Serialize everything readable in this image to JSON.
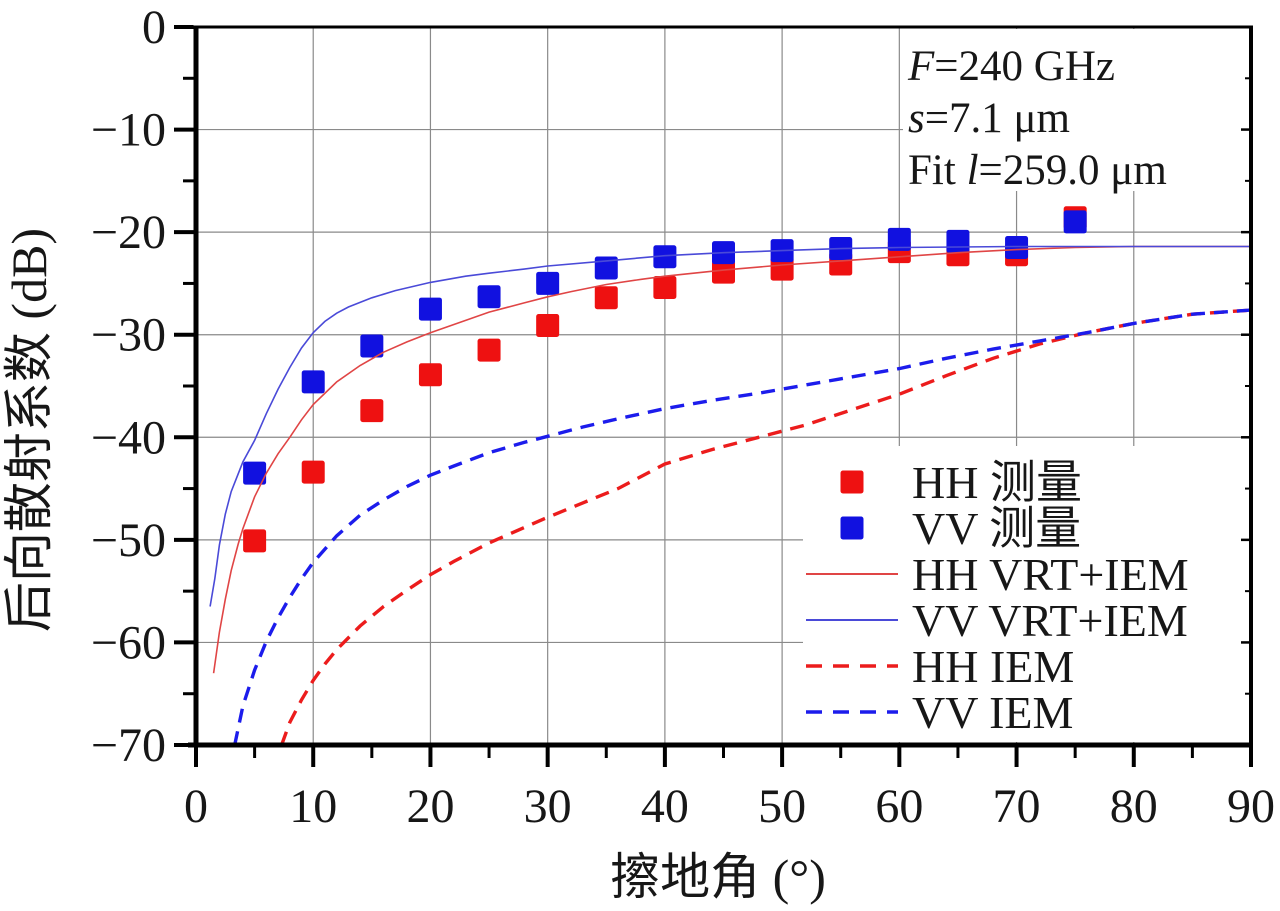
{
  "figure": {
    "background": "#ffffff",
    "text_color": "#171717",
    "grid_color": "#8a8a8a",
    "axis_color": "#000000",
    "annotation": {
      "lines": [
        {
          "pre": "",
          "italic": "F",
          "post": "=240 GHz"
        },
        {
          "pre": "",
          "italic": "s",
          "post": "=7.1 μm"
        },
        {
          "pre": "Fit ",
          "italic": "l",
          "post": "=259.0 μm"
        }
      ]
    },
    "axes": {
      "x": {
        "label": "擦地角 (°)",
        "min": 0,
        "max": 90,
        "major_step": 10,
        "minor_step": 5,
        "tick_labels": [
          "0",
          "10",
          "20",
          "30",
          "40",
          "50",
          "60",
          "70",
          "80",
          "90"
        ]
      },
      "y": {
        "label": "后向散射系数 (dB)",
        "min": -70,
        "max": 0,
        "major_step": 10,
        "minor_step": 5,
        "tick_labels": [
          "0",
          "−10",
          "−20",
          "−30",
          "−40",
          "−50",
          "−60",
          "−70"
        ]
      }
    },
    "legend": {
      "entries": [
        {
          "label": "HH 测量",
          "swatch": "square",
          "color": "#ee1111"
        },
        {
          "label": "VV 测量",
          "swatch": "square",
          "color": "#1111e0"
        },
        {
          "label": "HH VRT+IEM",
          "swatch": "line",
          "color": "#e04545"
        },
        {
          "label": "VV VRT+IEM",
          "swatch": "line",
          "color": "#4a4ad8"
        },
        {
          "label": "HH IEM",
          "swatch": "dashed",
          "color": "#ec1c1c"
        },
        {
          "label": "VV IEM",
          "swatch": "dashed",
          "color": "#1c1cec"
        }
      ]
    }
  },
  "chart_data": {
    "type": "scatter",
    "title": "",
    "xlabel": "擦地角 (°)",
    "ylabel": "后向散射系数 (dB)",
    "xlim": [
      0,
      90
    ],
    "ylim": [
      -70,
      0
    ],
    "grid": true,
    "legend_position": "inside lower right",
    "annotation": [
      "F=240 GHz",
      "s=7.1 μm",
      "Fit l=259.0 μm"
    ],
    "series": [
      {
        "name": "HH 测量",
        "kind": "scatter",
        "marker": "square",
        "color": "#ee1111",
        "points": [
          [
            5,
            -50.1
          ],
          [
            10,
            -43.4
          ],
          [
            15,
            -37.4
          ],
          [
            20,
            -33.9
          ],
          [
            25,
            -31.5
          ],
          [
            30,
            -29.1
          ],
          [
            35,
            -26.4
          ],
          [
            40,
            -25.4
          ],
          [
            45,
            -23.9
          ],
          [
            50,
            -23.6
          ],
          [
            55,
            -23.1
          ],
          [
            60,
            -21.9
          ],
          [
            65,
            -22.2
          ],
          [
            70,
            -22.2
          ],
          [
            75,
            -18.6
          ]
        ]
      },
      {
        "name": "VV 测量",
        "kind": "scatter",
        "marker": "square",
        "color": "#1111e0",
        "points": [
          [
            5,
            -43.5
          ],
          [
            10,
            -34.6
          ],
          [
            15,
            -31.1
          ],
          [
            20,
            -27.5
          ],
          [
            25,
            -26.3
          ],
          [
            30,
            -25.0
          ],
          [
            35,
            -23.5
          ],
          [
            40,
            -22.4
          ],
          [
            45,
            -22.0
          ],
          [
            50,
            -21.8
          ],
          [
            55,
            -21.6
          ],
          [
            60,
            -20.7
          ],
          [
            65,
            -20.9
          ],
          [
            70,
            -21.5
          ],
          [
            75,
            -19.0
          ]
        ]
      },
      {
        "name": "HH VRT+IEM",
        "kind": "line",
        "style": "solid",
        "width": 1.6,
        "color": "#e04545",
        "points": [
          [
            1.5,
            -63
          ],
          [
            2,
            -59
          ],
          [
            2.5,
            -55.8
          ],
          [
            3,
            -53
          ],
          [
            3.6,
            -50.4
          ],
          [
            4,
            -48.9
          ],
          [
            5,
            -45.8
          ],
          [
            6,
            -43.5
          ],
          [
            7,
            -41.6
          ],
          [
            8,
            -40
          ],
          [
            9,
            -38.3
          ],
          [
            10,
            -36.8
          ],
          [
            12,
            -34.6
          ],
          [
            14,
            -33
          ],
          [
            16,
            -31.7
          ],
          [
            18,
            -30.7
          ],
          [
            20,
            -29.8
          ],
          [
            22,
            -29
          ],
          [
            25,
            -27.8
          ],
          [
            28,
            -26.9
          ],
          [
            30,
            -26.3
          ],
          [
            32,
            -25.8
          ],
          [
            35,
            -25.1
          ],
          [
            38,
            -24.6
          ],
          [
            40,
            -24.3
          ],
          [
            45,
            -23.7
          ],
          [
            50,
            -23.2
          ],
          [
            55,
            -22.8
          ],
          [
            60,
            -22.4
          ],
          [
            65,
            -22
          ],
          [
            70,
            -21.7
          ],
          [
            75,
            -21.5
          ],
          [
            80,
            -21.4
          ],
          [
            85,
            -21.4
          ],
          [
            90,
            -21.4
          ]
        ]
      },
      {
        "name": "VV VRT+IEM",
        "kind": "line",
        "style": "solid",
        "width": 1.6,
        "color": "#4a4ad8",
        "points": [
          [
            1.2,
            -56.5
          ],
          [
            1.6,
            -53.8
          ],
          [
            2,
            -50.5
          ],
          [
            2.5,
            -47.5
          ],
          [
            3,
            -45.3
          ],
          [
            4,
            -42.4
          ],
          [
            5,
            -40.3
          ],
          [
            6,
            -37.7
          ],
          [
            7,
            -35.3
          ],
          [
            8,
            -33.2
          ],
          [
            9,
            -31.3
          ],
          [
            10,
            -29.8
          ],
          [
            11,
            -28.7
          ],
          [
            12,
            -27.9
          ],
          [
            13,
            -27.3
          ],
          [
            15,
            -26.4
          ],
          [
            17,
            -25.7
          ],
          [
            20,
            -24.9
          ],
          [
            23,
            -24.3
          ],
          [
            25,
            -24
          ],
          [
            28,
            -23.6
          ],
          [
            30,
            -23.3
          ],
          [
            35,
            -22.8
          ],
          [
            40,
            -22.3
          ],
          [
            45,
            -22
          ],
          [
            50,
            -21.8
          ],
          [
            55,
            -21.6
          ],
          [
            60,
            -21.5
          ],
          [
            70,
            -21.4
          ],
          [
            80,
            -21.4
          ],
          [
            90,
            -21.4
          ]
        ]
      },
      {
        "name": "HH IEM",
        "kind": "line",
        "style": "dashed",
        "width": 3.4,
        "color": "#ec1c1c",
        "points": [
          [
            7.3,
            -70
          ],
          [
            8,
            -67.8
          ],
          [
            9,
            -65.6
          ],
          [
            10,
            -63.7
          ],
          [
            11,
            -62.1
          ],
          [
            12,
            -60.7
          ],
          [
            14,
            -58.4
          ],
          [
            16,
            -56.5
          ],
          [
            18,
            -54.9
          ],
          [
            20,
            -53.4
          ],
          [
            22,
            -52.1
          ],
          [
            25,
            -50.3
          ],
          [
            28,
            -48.8
          ],
          [
            30,
            -47.8
          ],
          [
            33,
            -46.4
          ],
          [
            36,
            -45
          ],
          [
            40,
            -42.6
          ],
          [
            44,
            -41.2
          ],
          [
            48,
            -40
          ],
          [
            52,
            -38.8
          ],
          [
            56,
            -37.3
          ],
          [
            60,
            -35.8
          ],
          [
            64,
            -34
          ],
          [
            68,
            -32.3
          ],
          [
            72,
            -30.9
          ],
          [
            76,
            -29.8
          ],
          [
            80,
            -28.9
          ],
          [
            85,
            -28
          ],
          [
            90,
            -27.6
          ]
        ]
      },
      {
        "name": "VV IEM",
        "kind": "line",
        "style": "dashed",
        "width": 3.4,
        "color": "#1c1cec",
        "points": [
          [
            3.3,
            -70
          ],
          [
            4,
            -66.2
          ],
          [
            5,
            -62.7
          ],
          [
            6,
            -59.9
          ],
          [
            7,
            -57.6
          ],
          [
            8,
            -55.6
          ],
          [
            9,
            -53.8
          ],
          [
            10,
            -52.2
          ],
          [
            12,
            -49.6
          ],
          [
            14,
            -47.6
          ],
          [
            16,
            -46.1
          ],
          [
            18,
            -44.8
          ],
          [
            20,
            -43.7
          ],
          [
            22,
            -42.8
          ],
          [
            25,
            -41.5
          ],
          [
            28,
            -40.5
          ],
          [
            30,
            -39.9
          ],
          [
            33,
            -39
          ],
          [
            36,
            -38.2
          ],
          [
            40,
            -37.2
          ],
          [
            44,
            -36.4
          ],
          [
            48,
            -35.7
          ],
          [
            52,
            -34.9
          ],
          [
            56,
            -34.1
          ],
          [
            60,
            -33.3
          ],
          [
            64,
            -32.3
          ],
          [
            68,
            -31.4
          ],
          [
            72,
            -30.6
          ],
          [
            76,
            -29.8
          ],
          [
            80,
            -28.9
          ],
          [
            85,
            -28
          ],
          [
            90,
            -27.6
          ]
        ]
      }
    ]
  }
}
